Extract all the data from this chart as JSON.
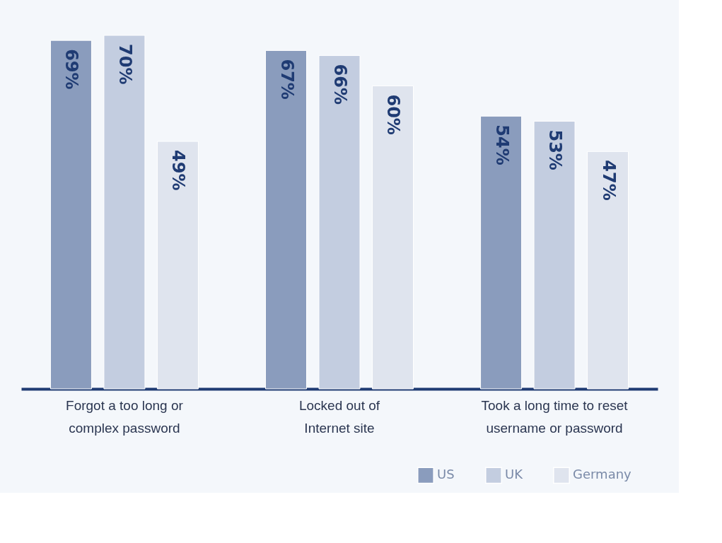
{
  "chart_data": {
    "type": "bar",
    "categories": [
      "Forgot a too long or complex password",
      "Locked out of Internet site",
      "Took a long time to reset username or password"
    ],
    "series": [
      {
        "name": "US",
        "color": "#8a9cbd",
        "values": [
          69,
          67,
          54
        ],
        "value_labels": [
          "69%",
          "67%",
          "54%"
        ]
      },
      {
        "name": "UK",
        "color": "#c3cde0",
        "values": [
          70,
          66,
          53
        ],
        "value_labels": [
          "70%",
          "66%",
          "53%"
        ]
      },
      {
        "name": "Germany",
        "color": "#dfe4ee",
        "values": [
          49,
          60,
          47
        ],
        "value_labels": [
          "49%",
          "60%",
          "47%"
        ]
      }
    ],
    "legend": "bottom right",
    "grid": false
  }
}
